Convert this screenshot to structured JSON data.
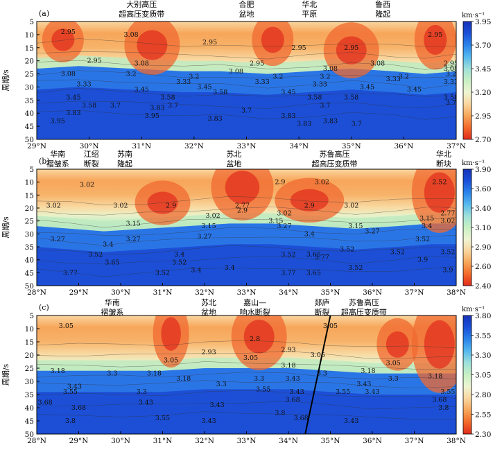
{
  "colors": {
    "stops": [
      "#e02a1c",
      "#f36a2a",
      "#f7a65a",
      "#f9d6a0",
      "#eef5d2",
      "#c8f0c4",
      "#9fe0da",
      "#55b8ee",
      "#2a83ea",
      "#1a4fd8",
      "#1532b8"
    ],
    "contour": "#333333",
    "fault": "#000000"
  },
  "chart_data": [
    {
      "type": "heatmap",
      "panel_label": "(a)",
      "xlabel": "",
      "ylabel": "周期/s",
      "xlim": [
        29,
        37
      ],
      "ylim": [
        50,
        5
      ],
      "x_ticks": [
        "29°N",
        "30°N",
        "31°N",
        "32°N",
        "33°N",
        "34°N",
        "35°N",
        "36°N",
        "37°N"
      ],
      "y_ticks": [
        "5",
        "10",
        "15",
        "20",
        "25",
        "30",
        "35",
        "40",
        "45",
        "50"
      ],
      "colorbar": {
        "unit": "km·s⁻¹",
        "min": 2.7,
        "max": 3.95,
        "ticks": [
          "3.95",
          "3.70",
          "3.45",
          "3.20",
          "2.95",
          "2.70"
        ]
      },
      "annotations": [
        {
          "text": "大别高压",
          "x": 31.0
        },
        {
          "text": "超高压变质带",
          "x": 31.0
        },
        {
          "text": "合肥",
          "x": 33.0
        },
        {
          "text": "盆地",
          "x": 33.0
        },
        {
          "text": "华北",
          "x": 34.2
        },
        {
          "text": "平原",
          "x": 34.2
        },
        {
          "text": "鲁西",
          "x": 35.6
        },
        {
          "text": "隆起",
          "x": 35.6
        }
      ],
      "profile": [
        [
          29.0,
          23
        ],
        [
          29.8,
          22
        ],
        [
          30.8,
          23
        ],
        [
          31.8,
          24
        ],
        [
          32.5,
          24
        ],
        [
          33.4,
          25
        ],
        [
          34.2,
          24
        ],
        [
          35.0,
          23
        ],
        [
          35.8,
          24
        ],
        [
          36.4,
          25
        ],
        [
          37.0,
          24
        ]
      ],
      "contour_labels": [
        {
          "text": "2.95",
          "x": 29.6,
          "y": 9
        },
        {
          "text": "3.08",
          "x": 30.8,
          "y": 10
        },
        {
          "text": "2.95",
          "x": 32.3,
          "y": 13
        },
        {
          "text": "2.95",
          "x": 34.0,
          "y": 15
        },
        {
          "text": "2.95",
          "x": 35.0,
          "y": 15
        },
        {
          "text": "2.95",
          "x": 36.6,
          "y": 10
        },
        {
          "text": "2.95",
          "x": 30.1,
          "y": 20
        },
        {
          "text": "3.08",
          "x": 31.0,
          "y": 21
        },
        {
          "text": "3.08",
          "x": 29.6,
          "y": 25
        },
        {
          "text": "3.2",
          "x": 30.8,
          "y": 25
        },
        {
          "text": "3.33",
          "x": 29.9,
          "y": 29
        },
        {
          "text": "3.45",
          "x": 31.0,
          "y": 31
        },
        {
          "text": "3.08",
          "x": 32.8,
          "y": 24
        },
        {
          "text": "2.95",
          "x": 33.2,
          "y": 21
        },
        {
          "text": "3.2",
          "x": 32.0,
          "y": 26
        },
        {
          "text": "3.33",
          "x": 31.8,
          "y": 28
        },
        {
          "text": "3.45",
          "x": 32.2,
          "y": 30
        },
        {
          "text": "3.2",
          "x": 33.6,
          "y": 26
        },
        {
          "text": "3.33",
          "x": 33.3,
          "y": 28
        },
        {
          "text": "3.08",
          "x": 34.6,
          "y": 23
        },
        {
          "text": "3.2",
          "x": 34.5,
          "y": 26
        },
        {
          "text": "3.33",
          "x": 34.4,
          "y": 29
        },
        {
          "text": "3.45",
          "x": 33.8,
          "y": 32
        },
        {
          "text": "3.58",
          "x": 32.5,
          "y": 32
        },
        {
          "text": "3.08",
          "x": 35.5,
          "y": 21
        },
        {
          "text": "3.2",
          "x": 36.0,
          "y": 26
        },
        {
          "text": "3.33",
          "x": 35.8,
          "y": 27
        },
        {
          "text": "3.45",
          "x": 35.3,
          "y": 30
        },
        {
          "text": "3.45",
          "x": 36.2,
          "y": 31
        },
        {
          "text": "2.95",
          "x": 36.9,
          "y": 21
        },
        {
          "text": "3.08",
          "x": 36.9,
          "y": 23
        },
        {
          "text": "3.2",
          "x": 36.9,
          "y": 25
        },
        {
          "text": "3.33",
          "x": 36.9,
          "y": 28
        },
        {
          "text": "3.45",
          "x": 29.7,
          "y": 34
        },
        {
          "text": "3.58",
          "x": 30.0,
          "y": 37
        },
        {
          "text": "3.7",
          "x": 30.5,
          "y": 37
        },
        {
          "text": "3.83",
          "x": 29.7,
          "y": 40
        },
        {
          "text": "3.95",
          "x": 29.4,
          "y": 43
        },
        {
          "text": "3.58",
          "x": 31.5,
          "y": 34
        },
        {
          "text": "3.7",
          "x": 31.6,
          "y": 37
        },
        {
          "text": "3.83",
          "x": 31.3,
          "y": 38
        },
        {
          "text": "3.95",
          "x": 31.2,
          "y": 41
        },
        {
          "text": "3.7",
          "x": 33.0,
          "y": 39
        },
        {
          "text": "3.58",
          "x": 34.3,
          "y": 34
        },
        {
          "text": "3.7",
          "x": 34.5,
          "y": 37
        },
        {
          "text": "3.58",
          "x": 35.0,
          "y": 34
        },
        {
          "text": "3.83",
          "x": 32.4,
          "y": 42
        },
        {
          "text": "3.83",
          "x": 33.8,
          "y": 41
        },
        {
          "text": "3.83",
          "x": 34.1,
          "y": 44
        },
        {
          "text": "3.83",
          "x": 34.6,
          "y": 43
        },
        {
          "text": "3.7",
          "x": 35.1,
          "y": 44
        },
        {
          "text": "3.58",
          "x": 36.9,
          "y": 34
        },
        {
          "text": "3.7",
          "x": 36.9,
          "y": 36
        }
      ]
    },
    {
      "type": "heatmap",
      "panel_label": "(b)",
      "xlabel": "",
      "ylabel": "周期/s",
      "xlim": [
        28,
        38
      ],
      "ylim": [
        50,
        5
      ],
      "x_ticks": [
        "28°N",
        "29°N",
        "30°N",
        "31°N",
        "32°N",
        "33°N",
        "34°N",
        "35°N",
        "36°N",
        "37°N",
        "38°N"
      ],
      "y_ticks": [
        "5",
        "10",
        "15",
        "20",
        "25",
        "30",
        "35",
        "40",
        "45",
        "50"
      ],
      "colorbar": {
        "unit": "km·s⁻¹",
        "min": 2.4,
        "max": 3.9,
        "ticks": [
          "3.90",
          "3.60",
          "3.40",
          "3.10",
          "2.90",
          "2.60",
          "2.40"
        ]
      },
      "annotations": [
        {
          "text": "华南",
          "x": 28.5
        },
        {
          "text": "褶皱系",
          "x": 28.5
        },
        {
          "text": "江绍",
          "x": 29.3
        },
        {
          "text": "断裂",
          "x": 29.3
        },
        {
          "text": "苏南",
          "x": 30.1
        },
        {
          "text": "隆起",
          "x": 30.1
        },
        {
          "text": "苏北",
          "x": 32.7
        },
        {
          "text": "盆地",
          "x": 32.7
        },
        {
          "text": "苏鲁高压",
          "x": 35.1
        },
        {
          "text": "超高压变质带",
          "x": 35.1
        },
        {
          "text": "华北",
          "x": 37.7
        },
        {
          "text": "断块",
          "x": 37.7
        }
      ],
      "profile": [
        [
          28.0,
          27
        ],
        [
          28.8,
          28
        ],
        [
          29.6,
          29
        ],
        [
          30.6,
          28
        ],
        [
          31.6,
          27
        ],
        [
          32.6,
          26
        ],
        [
          33.6,
          26
        ],
        [
          34.6,
          27
        ],
        [
          35.6,
          28
        ],
        [
          36.6,
          27
        ],
        [
          37.4,
          26
        ],
        [
          38.0,
          26
        ]
      ],
      "contour_labels": [
        {
          "text": "3.02",
          "x": 29.2,
          "y": 11
        },
        {
          "text": "3.02",
          "x": 28.4,
          "y": 19
        },
        {
          "text": "3.02",
          "x": 30.0,
          "y": 19
        },
        {
          "text": "2.9",
          "x": 31.2,
          "y": 19
        },
        {
          "text": "2.77",
          "x": 32.9,
          "y": 19
        },
        {
          "text": "2.9",
          "x": 32.9,
          "y": 21
        },
        {
          "text": "2.9",
          "x": 33.8,
          "y": 10
        },
        {
          "text": "3.02",
          "x": 34.8,
          "y": 10
        },
        {
          "text": "2.52",
          "x": 37.6,
          "y": 10
        },
        {
          "text": "3.02",
          "x": 32.2,
          "y": 23
        },
        {
          "text": "3.15",
          "x": 30.3,
          "y": 26
        },
        {
          "text": "3.15",
          "x": 32.1,
          "y": 27
        },
        {
          "text": "3.02",
          "x": 33.9,
          "y": 22
        },
        {
          "text": "2.9",
          "x": 34.5,
          "y": 19
        },
        {
          "text": "3.15",
          "x": 33.7,
          "y": 25
        },
        {
          "text": "3.27",
          "x": 33.9,
          "y": 27
        },
        {
          "text": "3.02",
          "x": 35.5,
          "y": 19
        },
        {
          "text": "3.15",
          "x": 35.6,
          "y": 27
        },
        {
          "text": "3.27",
          "x": 36.0,
          "y": 29
        },
        {
          "text": "3.4",
          "x": 34.5,
          "y": 30
        },
        {
          "text": "2.77",
          "x": 37.8,
          "y": 22
        },
        {
          "text": "3.02",
          "x": 37.8,
          "y": 25
        },
        {
          "text": "3.15",
          "x": 37.3,
          "y": 24
        },
        {
          "text": "3.4",
          "x": 37.3,
          "y": 27
        },
        {
          "text": "3.27",
          "x": 28.5,
          "y": 32
        },
        {
          "text": "3.27",
          "x": 30.3,
          "y": 32
        },
        {
          "text": "3.27",
          "x": 32.0,
          "y": 31
        },
        {
          "text": "3.4",
          "x": 29.7,
          "y": 34
        },
        {
          "text": "3.52",
          "x": 29.4,
          "y": 38
        },
        {
          "text": "3.65",
          "x": 29.8,
          "y": 41
        },
        {
          "text": "3.77",
          "x": 28.8,
          "y": 45
        },
        {
          "text": "3.4",
          "x": 31.4,
          "y": 38
        },
        {
          "text": "3.52",
          "x": 31.4,
          "y": 41
        },
        {
          "text": "3.52",
          "x": 31.0,
          "y": 45
        },
        {
          "text": "3.4",
          "x": 31.8,
          "y": 44
        },
        {
          "text": "3.4",
          "x": 32.6,
          "y": 43
        },
        {
          "text": "3.52",
          "x": 34.0,
          "y": 38
        },
        {
          "text": "3.65",
          "x": 34.6,
          "y": 38
        },
        {
          "text": "3.77",
          "x": 34.8,
          "y": 39
        },
        {
          "text": "3.52",
          "x": 35.4,
          "y": 36
        },
        {
          "text": "3.77",
          "x": 34.0,
          "y": 45
        },
        {
          "text": "3.65",
          "x": 34.6,
          "y": 45
        },
        {
          "text": "3.52",
          "x": 35.6,
          "y": 43
        },
        {
          "text": "3.52",
          "x": 37.2,
          "y": 32
        },
        {
          "text": "3.52",
          "x": 36.6,
          "y": 37
        },
        {
          "text": "3.52",
          "x": 37.8,
          "y": 37
        },
        {
          "text": "3.9",
          "x": 37.2,
          "y": 40
        },
        {
          "text": "3.9",
          "x": 37.8,
          "y": 44
        }
      ]
    },
    {
      "type": "heatmap",
      "panel_label": "(c)",
      "xlabel": "",
      "ylabel": "周期/s",
      "xlim": [
        28,
        38
      ],
      "ylim": [
        50,
        5
      ],
      "x_ticks": [
        "28°N",
        "29°N",
        "30°N",
        "31°N",
        "32°N",
        "33°N",
        "34°N",
        "35°N",
        "36°N",
        "37°N",
        "38°N"
      ],
      "y_ticks": [
        "5",
        "10",
        "15",
        "20",
        "25",
        "30",
        "35",
        "40",
        "45",
        "50"
      ],
      "colorbar": {
        "unit": "km·s⁻¹",
        "min": 2.3,
        "max": 3.8,
        "ticks": [
          "3.80",
          "3.55",
          "3.30",
          "3.05",
          "2.80",
          "2.55",
          "2.30"
        ]
      },
      "annotations": [
        {
          "text": "华南",
          "x": 29.8
        },
        {
          "text": "褶皱系",
          "x": 29.8
        },
        {
          "text": "苏北",
          "x": 32.1
        },
        {
          "text": "盆地",
          "x": 32.1
        },
        {
          "text": "嘉山—",
          "x": 33.2
        },
        {
          "text": "响水断裂",
          "x": 33.2
        },
        {
          "text": "郯庐",
          "x": 34.8
        },
        {
          "text": "断裂",
          "x": 34.8
        },
        {
          "text": "苏鲁高压",
          "x": 35.8
        },
        {
          "text": "超高压变质带",
          "x": 35.8
        }
      ],
      "profile": [
        [
          28.0,
          26
        ],
        [
          29.0,
          26
        ],
        [
          30.0,
          26
        ],
        [
          31.0,
          26
        ],
        [
          32.0,
          25
        ],
        [
          33.0,
          25
        ],
        [
          34.0,
          25
        ],
        [
          35.0,
          26
        ],
        [
          36.0,
          27
        ],
        [
          37.0,
          27
        ],
        [
          38.0,
          27
        ]
      ],
      "fault_line": [
        [
          34.4,
          50
        ],
        [
          35.0,
          5
        ]
      ],
      "contour_labels": [
        {
          "text": "3.05",
          "x": 28.7,
          "y": 9
        },
        {
          "text": "2.8",
          "x": 33.2,
          "y": 14
        },
        {
          "text": "2.93",
          "x": 32.1,
          "y": 19
        },
        {
          "text": "3.05",
          "x": 33.1,
          "y": 21
        },
        {
          "text": "2.93",
          "x": 34.0,
          "y": 18
        },
        {
          "text": "3.05",
          "x": 34.7,
          "y": 20
        },
        {
          "text": "3.05",
          "x": 35.0,
          "y": 9
        },
        {
          "text": "3.05",
          "x": 31.2,
          "y": 22
        },
        {
          "text": "3.18",
          "x": 34.0,
          "y": 24
        },
        {
          "text": "3.05",
          "x": 36.5,
          "y": 23
        },
        {
          "text": "3.18",
          "x": 28.5,
          "y": 26
        },
        {
          "text": "3.3",
          "x": 29.8,
          "y": 27
        },
        {
          "text": "3.18",
          "x": 30.8,
          "y": 27
        },
        {
          "text": "3.18",
          "x": 31.5,
          "y": 29
        },
        {
          "text": "3.3",
          "x": 32.4,
          "y": 31
        },
        {
          "text": "3.3",
          "x": 33.3,
          "y": 29
        },
        {
          "text": "3.43",
          "x": 34.1,
          "y": 29
        },
        {
          "text": "3.3",
          "x": 34.8,
          "y": 27
        },
        {
          "text": "3.18",
          "x": 35.9,
          "y": 26
        },
        {
          "text": "3.3",
          "x": 36.5,
          "y": 29
        },
        {
          "text": "3.43",
          "x": 35.8,
          "y": 31
        },
        {
          "text": "3.18",
          "x": 37.5,
          "y": 28
        },
        {
          "text": "3.43",
          "x": 28.9,
          "y": 32
        },
        {
          "text": "3.55",
          "x": 28.8,
          "y": 34
        },
        {
          "text": "3.3",
          "x": 30.5,
          "y": 34
        },
        {
          "text": "3.43",
          "x": 30.6,
          "y": 38
        },
        {
          "text": "3.68",
          "x": 28.2,
          "y": 38
        },
        {
          "text": "3.68",
          "x": 29.0,
          "y": 40
        },
        {
          "text": "3.8",
          "x": 28.8,
          "y": 45
        },
        {
          "text": "3.55",
          "x": 31.0,
          "y": 44
        },
        {
          "text": "3.43",
          "x": 32.3,
          "y": 39
        },
        {
          "text": "3.43",
          "x": 32.1,
          "y": 45
        },
        {
          "text": "3.55",
          "x": 33.4,
          "y": 33
        },
        {
          "text": "3.43",
          "x": 34.2,
          "y": 34
        },
        {
          "text": "3.68",
          "x": 34.1,
          "y": 37
        },
        {
          "text": "3.8",
          "x": 33.8,
          "y": 42
        },
        {
          "text": "3.68",
          "x": 34.3,
          "y": 44
        },
        {
          "text": "3.55",
          "x": 35.3,
          "y": 34
        },
        {
          "text": "3.43",
          "x": 36.0,
          "y": 34
        },
        {
          "text": "3.43",
          "x": 35.5,
          "y": 45
        },
        {
          "text": "3.55",
          "x": 37.8,
          "y": 34
        },
        {
          "text": "3.68",
          "x": 37.6,
          "y": 37
        },
        {
          "text": "3.8",
          "x": 37.7,
          "y": 40
        }
      ]
    }
  ]
}
